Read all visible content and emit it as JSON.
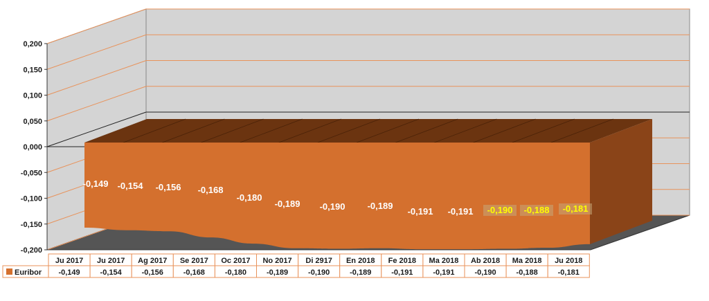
{
  "chart_data": {
    "type": "area",
    "title": "",
    "xlabel": "",
    "ylabel": "",
    "ylim": [
      -0.2,
      0.2
    ],
    "ytick_step": 0.05,
    "ytick_labels": [
      "0,200",
      "0,150",
      "0,100",
      "0,050",
      "0,000",
      "-0,050",
      "-0,100",
      "-0,150",
      "-0,200"
    ],
    "categories": [
      "Ju  2017",
      "Ju 2017",
      "Ag 2017",
      "Se  2017",
      "Oc 2017",
      "No  2017",
      "Di 2917",
      "En 2018",
      "Fe 2018",
      "Ma 2018",
      "Ab 2018",
      "Ma 2018",
      "Ju 2018"
    ],
    "series": [
      {
        "name": "Euribor",
        "values": [
          -0.149,
          -0.154,
          -0.156,
          -0.168,
          -0.18,
          -0.189,
          -0.19,
          -0.189,
          -0.191,
          -0.191,
          -0.19,
          -0.188,
          -0.181
        ],
        "labels": [
          "-0,149",
          "-0,154",
          "-0,156",
          "-0,168",
          "-0,180",
          "-0,189",
          "-0,190",
          "-0,189",
          "-0,191",
          "-0,191",
          "-0,190",
          "-0,188",
          "-0,181"
        ],
        "highlighted_labels": [
          10,
          11,
          12
        ],
        "color": "#d4702e"
      }
    ],
    "legend": "bottom-table",
    "grid": true
  },
  "colors": {
    "series": "#d4702e",
    "series_top": "#6b3410",
    "series_side": "#8a4418",
    "gridline": "#e8925a",
    "wall": "#d4d4d4",
    "floor": "#555555",
    "highlight_label": "#ffff00",
    "label_bg": "#c4a87a"
  }
}
